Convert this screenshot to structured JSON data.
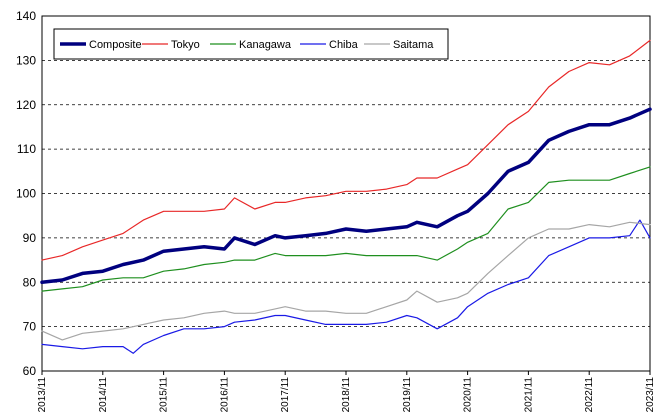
{
  "chart_data": {
    "type": "line",
    "title": "",
    "xlabel": "",
    "ylabel": "",
    "ylim": [
      60,
      140
    ],
    "yticks": [
      60,
      70,
      80,
      90,
      100,
      110,
      120,
      130,
      140
    ],
    "xticks": [
      "2013/11",
      "2014/11",
      "2015/11",
      "2016/11",
      "2017/11",
      "2018/11",
      "2019/11",
      "2020/11",
      "2021/11",
      "2022/11",
      "2023/11"
    ],
    "x_start": "2013/11",
    "x_end": "2023/11",
    "grid": "horizontal dashed",
    "legend_position": "top-left",
    "series": [
      {
        "name": "Composite",
        "color": "#00007f",
        "bold": true,
        "points": [
          [
            "2013/11",
            80.0
          ],
          [
            "2014/03",
            80.5
          ],
          [
            "2014/07",
            82.0
          ],
          [
            "2014/11",
            82.5
          ],
          [
            "2015/03",
            84.0
          ],
          [
            "2015/07",
            85.0
          ],
          [
            "2015/11",
            87.0
          ],
          [
            "2016/03",
            87.5
          ],
          [
            "2016/07",
            88.0
          ],
          [
            "2016/11",
            87.5
          ],
          [
            "2017/01",
            90.0
          ],
          [
            "2017/05",
            88.5
          ],
          [
            "2017/09",
            90.5
          ],
          [
            "2017/11",
            90.0
          ],
          [
            "2018/03",
            90.5
          ],
          [
            "2018/07",
            91.0
          ],
          [
            "2018/11",
            92.0
          ],
          [
            "2019/03",
            91.5
          ],
          [
            "2019/07",
            92.0
          ],
          [
            "2019/11",
            92.5
          ],
          [
            "2020/01",
            93.5
          ],
          [
            "2020/05",
            92.5
          ],
          [
            "2020/09",
            95.0
          ],
          [
            "2020/11",
            96.0
          ],
          [
            "2021/03",
            100.0
          ],
          [
            "2021/07",
            105.0
          ],
          [
            "2021/11",
            107.0
          ],
          [
            "2022/03",
            112.0
          ],
          [
            "2022/07",
            114.0
          ],
          [
            "2022/11",
            115.5
          ],
          [
            "2023/03",
            115.5
          ],
          [
            "2023/07",
            117.0
          ],
          [
            "2023/11",
            119.0
          ]
        ]
      },
      {
        "name": "Tokyo",
        "color": "#e82828",
        "bold": false,
        "points": [
          [
            "2013/11",
            85.0
          ],
          [
            "2014/03",
            86.0
          ],
          [
            "2014/07",
            88.0
          ],
          [
            "2014/11",
            89.5
          ],
          [
            "2015/03",
            91.0
          ],
          [
            "2015/07",
            94.0
          ],
          [
            "2015/11",
            96.0
          ],
          [
            "2016/03",
            96.0
          ],
          [
            "2016/07",
            96.0
          ],
          [
            "2016/11",
            96.5
          ],
          [
            "2017/01",
            99.0
          ],
          [
            "2017/05",
            96.5
          ],
          [
            "2017/09",
            98.0
          ],
          [
            "2017/11",
            98.0
          ],
          [
            "2018/03",
            99.0
          ],
          [
            "2018/07",
            99.5
          ],
          [
            "2018/11",
            100.5
          ],
          [
            "2019/03",
            100.5
          ],
          [
            "2019/07",
            101.0
          ],
          [
            "2019/11",
            102.0
          ],
          [
            "2020/01",
            103.5
          ],
          [
            "2020/05",
            103.5
          ],
          [
            "2020/09",
            105.5
          ],
          [
            "2020/11",
            106.5
          ],
          [
            "2021/03",
            111.0
          ],
          [
            "2021/07",
            115.5
          ],
          [
            "2021/11",
            118.5
          ],
          [
            "2022/03",
            124.0
          ],
          [
            "2022/07",
            127.5
          ],
          [
            "2022/11",
            129.5
          ],
          [
            "2023/03",
            129.0
          ],
          [
            "2023/07",
            131.0
          ],
          [
            "2023/11",
            134.5
          ]
        ]
      },
      {
        "name": "Kanagawa",
        "color": "#1f8f1f",
        "bold": false,
        "points": [
          [
            "2013/11",
            78.0
          ],
          [
            "2014/03",
            78.5
          ],
          [
            "2014/07",
            79.0
          ],
          [
            "2014/11",
            80.5
          ],
          [
            "2015/03",
            81.0
          ],
          [
            "2015/07",
            81.0
          ],
          [
            "2015/11",
            82.5
          ],
          [
            "2016/03",
            83.0
          ],
          [
            "2016/07",
            84.0
          ],
          [
            "2016/11",
            84.5
          ],
          [
            "2017/01",
            85.0
          ],
          [
            "2017/05",
            85.0
          ],
          [
            "2017/09",
            86.5
          ],
          [
            "2017/11",
            86.0
          ],
          [
            "2018/03",
            86.0
          ],
          [
            "2018/07",
            86.0
          ],
          [
            "2018/11",
            86.5
          ],
          [
            "2019/03",
            86.0
          ],
          [
            "2019/07",
            86.0
          ],
          [
            "2019/11",
            86.0
          ],
          [
            "2020/01",
            86.0
          ],
          [
            "2020/05",
            85.0
          ],
          [
            "2020/09",
            87.5
          ],
          [
            "2020/11",
            89.0
          ],
          [
            "2021/03",
            91.0
          ],
          [
            "2021/07",
            96.5
          ],
          [
            "2021/11",
            98.0
          ],
          [
            "2022/03",
            102.5
          ],
          [
            "2022/07",
            103.0
          ],
          [
            "2022/11",
            103.0
          ],
          [
            "2023/03",
            103.0
          ],
          [
            "2023/07",
            104.5
          ],
          [
            "2023/11",
            106.0
          ]
        ]
      },
      {
        "name": "Chiba",
        "color": "#1a1ae6",
        "bold": false,
        "points": [
          [
            "2013/11",
            66.0
          ],
          [
            "2014/03",
            65.5
          ],
          [
            "2014/07",
            65.0
          ],
          [
            "2014/11",
            65.5
          ],
          [
            "2015/03",
            65.5
          ],
          [
            "2015/05",
            64.0
          ],
          [
            "2015/07",
            66.0
          ],
          [
            "2015/11",
            68.0
          ],
          [
            "2016/03",
            69.5
          ],
          [
            "2016/07",
            69.5
          ],
          [
            "2016/11",
            70.0
          ],
          [
            "2017/01",
            71.0
          ],
          [
            "2017/05",
            71.5
          ],
          [
            "2017/09",
            72.5
          ],
          [
            "2017/11",
            72.5
          ],
          [
            "2018/03",
            71.5
          ],
          [
            "2018/07",
            70.5
          ],
          [
            "2018/11",
            70.5
          ],
          [
            "2019/03",
            70.5
          ],
          [
            "2019/07",
            71.0
          ],
          [
            "2019/11",
            72.5
          ],
          [
            "2020/01",
            72.0
          ],
          [
            "2020/05",
            69.5
          ],
          [
            "2020/09",
            72.0
          ],
          [
            "2020/11",
            74.5
          ],
          [
            "2021/03",
            77.5
          ],
          [
            "2021/07",
            79.5
          ],
          [
            "2021/11",
            81.0
          ],
          [
            "2022/03",
            86.0
          ],
          [
            "2022/07",
            88.0
          ],
          [
            "2022/11",
            90.0
          ],
          [
            "2023/03",
            90.0
          ],
          [
            "2023/07",
            90.5
          ],
          [
            "2023/09",
            94.0
          ],
          [
            "2023/11",
            90.0
          ]
        ]
      },
      {
        "name": "Saitama",
        "color": "#a6a6a6",
        "bold": false,
        "points": [
          [
            "2013/11",
            69.0
          ],
          [
            "2014/03",
            67.0
          ],
          [
            "2014/07",
            68.5
          ],
          [
            "2014/11",
            69.0
          ],
          [
            "2015/03",
            69.5
          ],
          [
            "2015/07",
            70.5
          ],
          [
            "2015/11",
            71.5
          ],
          [
            "2016/03",
            72.0
          ],
          [
            "2016/07",
            73.0
          ],
          [
            "2016/11",
            73.5
          ],
          [
            "2017/01",
            73.0
          ],
          [
            "2017/05",
            73.0
          ],
          [
            "2017/09",
            74.0
          ],
          [
            "2017/11",
            74.5
          ],
          [
            "2018/03",
            73.5
          ],
          [
            "2018/07",
            73.5
          ],
          [
            "2018/11",
            73.0
          ],
          [
            "2019/03",
            73.0
          ],
          [
            "2019/07",
            74.5
          ],
          [
            "2019/11",
            76.0
          ],
          [
            "2020/01",
            78.0
          ],
          [
            "2020/05",
            75.5
          ],
          [
            "2020/09",
            76.5
          ],
          [
            "2020/11",
            77.5
          ],
          [
            "2021/03",
            82.0
          ],
          [
            "2021/07",
            86.0
          ],
          [
            "2021/11",
            90.0
          ],
          [
            "2022/03",
            92.0
          ],
          [
            "2022/07",
            92.0
          ],
          [
            "2022/11",
            93.0
          ],
          [
            "2023/03",
            92.5
          ],
          [
            "2023/07",
            93.5
          ],
          [
            "2023/11",
            93.0
          ]
        ]
      }
    ]
  }
}
